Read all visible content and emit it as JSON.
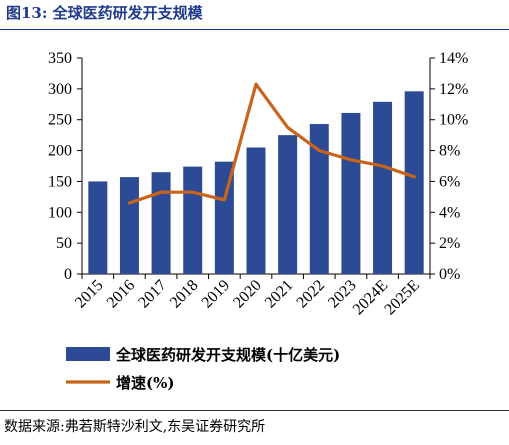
{
  "figure": {
    "label": "图13:",
    "title": "全球医药研发开支规模",
    "source": "数据来源:弗若斯特沙利文,东吴证券研究所"
  },
  "colors": {
    "bar": "#2c4b94",
    "line": "#c8641c",
    "title": "#1f3a8a"
  },
  "chart_data": {
    "type": "bar",
    "categories": [
      "2015",
      "2016",
      "2017",
      "2018",
      "2019",
      "2020",
      "2021",
      "2022",
      "2023",
      "2024E",
      "2025E"
    ],
    "series": [
      {
        "name": "全球医药研发开支规模(十亿美元)",
        "type": "bar",
        "axis": "left",
        "values": [
          150,
          157,
          165,
          174,
          182,
          205,
          225,
          243,
          261,
          279,
          296
        ]
      },
      {
        "name": "增速(%)",
        "type": "line",
        "axis": "right",
        "values": [
          null,
          4.6,
          5.3,
          5.3,
          4.8,
          12.3,
          9.5,
          8.0,
          7.4,
          7.0,
          6.3
        ]
      }
    ],
    "y_left": {
      "ylim": [
        0,
        350
      ],
      "ticks": [
        0,
        50,
        100,
        150,
        200,
        250,
        300,
        350
      ]
    },
    "y_right": {
      "ylim": [
        0,
        14
      ],
      "ticks": [
        "0%",
        "2%",
        "4%",
        "6%",
        "8%",
        "10%",
        "12%",
        "14%"
      ]
    },
    "legend_position": "bottom",
    "grid": false
  }
}
